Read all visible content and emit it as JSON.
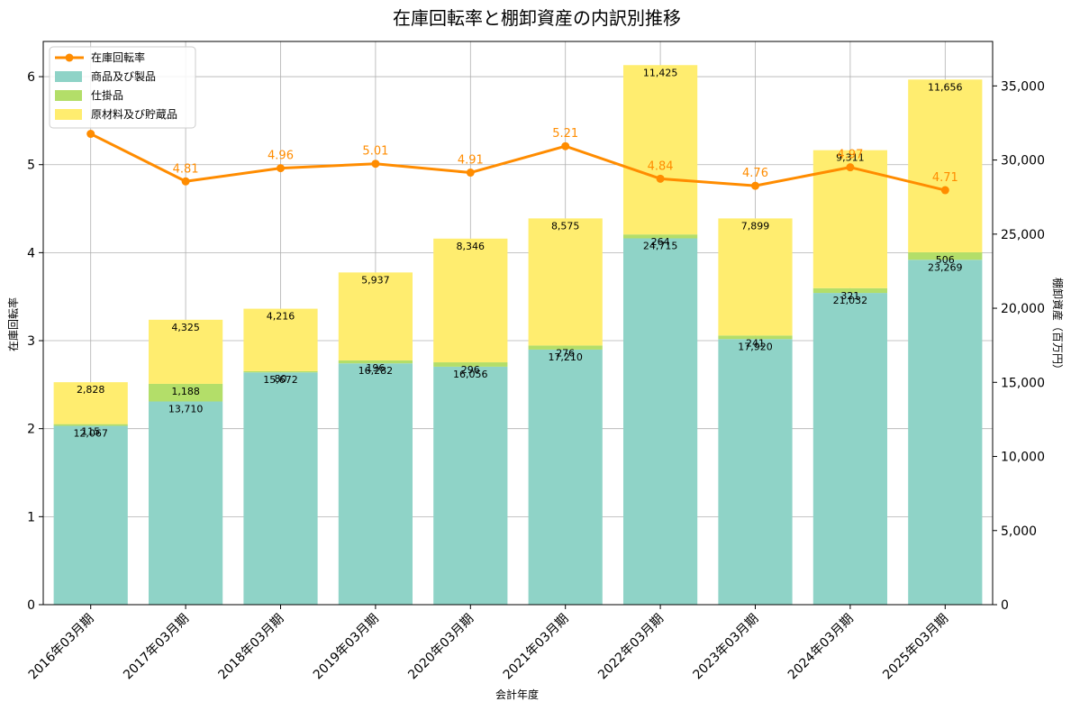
{
  "chart_data": {
    "type": "bar",
    "title": "在庫回転率と棚卸資産の内訳別推移",
    "xlabel": "会計年度",
    "ylabel_left": "在庫回転率",
    "ylabel_right": "棚卸資産（百万円）",
    "categories": [
      "2016年03月期",
      "2017年03月期",
      "2018年03月期",
      "2019年03月期",
      "2020年03月期",
      "2021年03月期",
      "2022年03月期",
      "2023年03月期",
      "2024年03月期",
      "2025年03月期"
    ],
    "series": [
      {
        "name": "商品及び製品",
        "axis": "right",
        "kind": "stacked-bar",
        "color": "#8fd3c7",
        "values": [
          12067,
          13710,
          15672,
          16282,
          16056,
          17210,
          24715,
          17920,
          21032,
          23269
        ],
        "labels": [
          "12,067",
          "13,710",
          "15,672",
          "16,282",
          "16,056",
          "17,210",
          "24,715",
          "17,920",
          "21,032",
          "23,269"
        ]
      },
      {
        "name": "仕掛品",
        "axis": "right",
        "kind": "stacked-bar",
        "color": "#b3de69",
        "values": [
          115,
          1188,
          80,
          196,
          296,
          276,
          264,
          241,
          321,
          506
        ],
        "labels": [
          "115",
          "1,188",
          "80",
          "196",
          "296",
          "276",
          "264",
          "241",
          "321",
          "506"
        ]
      },
      {
        "name": "原材料及び貯蔵品",
        "axis": "right",
        "kind": "stacked-bar",
        "color": "#ffed6f",
        "values": [
          2828,
          4325,
          4216,
          5937,
          8346,
          8575,
          11425,
          7899,
          9311,
          11656
        ],
        "labels": [
          "2,828",
          "4,325",
          "4,216",
          "5,937",
          "8,346",
          "8,575",
          "11,425",
          "7,899",
          "9,311",
          "11,656"
        ]
      },
      {
        "name": "在庫回転率",
        "axis": "left",
        "kind": "line",
        "color": "#ff8c00",
        "values": [
          5.35,
          4.81,
          4.96,
          5.01,
          4.91,
          5.21,
          4.84,
          4.76,
          4.97,
          4.71
        ],
        "labels": [
          "",
          "4.81",
          "4.96",
          "5.01",
          "4.91",
          "5.21",
          "4.84",
          "4.76",
          "4.97",
          "4.71"
        ]
      }
    ],
    "ylim_left": [
      0,
      6.4
    ],
    "ylim_right": [
      0,
      38000
    ],
    "yticks_left": [
      "0",
      "1",
      "2",
      "3",
      "4",
      "5",
      "6"
    ],
    "yticks_left_values": [
      0,
      1,
      2,
      3,
      4,
      5,
      6
    ],
    "yticks_right": [
      "0",
      "5,000",
      "10,000",
      "15,000",
      "20,000",
      "25,000",
      "30,000",
      "35,000"
    ],
    "yticks_right_values": [
      0,
      5000,
      10000,
      15000,
      20000,
      25000,
      30000,
      35000
    ],
    "grid": true,
    "legend_position": "top-left"
  }
}
